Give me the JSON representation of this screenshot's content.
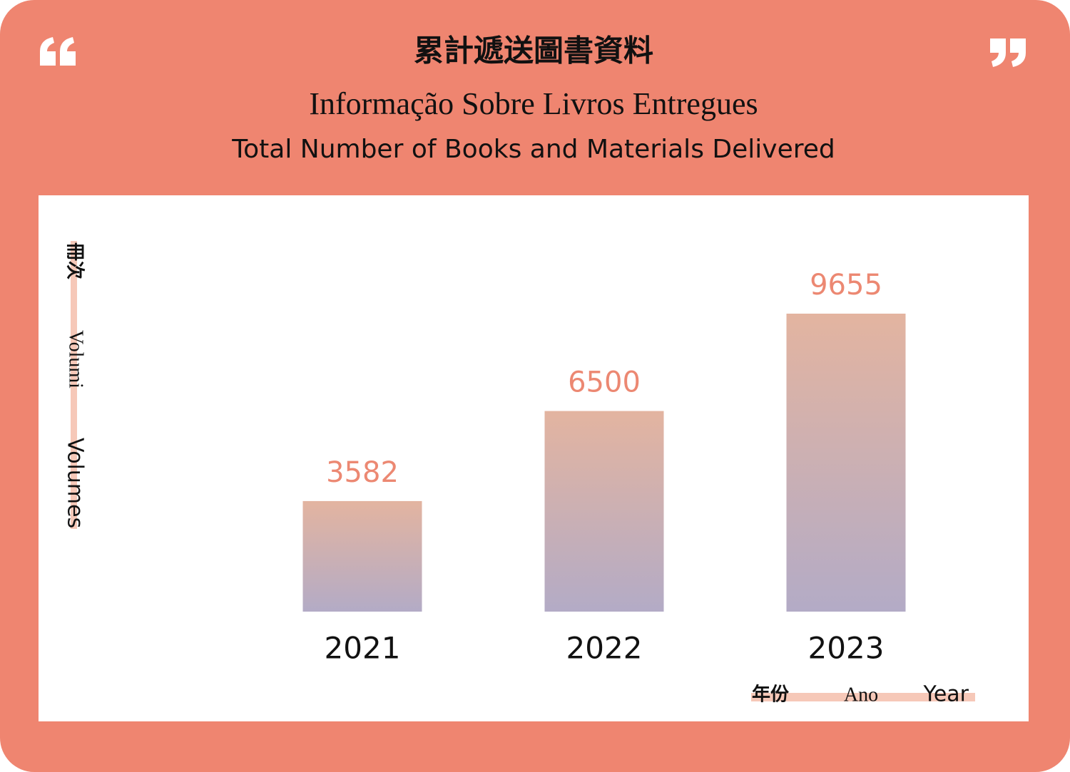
{
  "chart_data": {
    "type": "bar",
    "title": "累計遞送圖書資料",
    "subtitles": [
      "Informação Sobre Livros Entregues",
      "Total Number of Books and Materials Delivered"
    ],
    "y_label": [
      "冊次",
      "Volumi",
      "Volumes"
    ],
    "x_label": [
      "年份",
      "Ano",
      "Year"
    ],
    "categories": [
      "2021",
      "2022",
      "2023"
    ],
    "values": [
      3582,
      6500,
      9655
    ],
    "gradient": [
      "#e3b4a0",
      "#b3abc6"
    ]
  }
}
